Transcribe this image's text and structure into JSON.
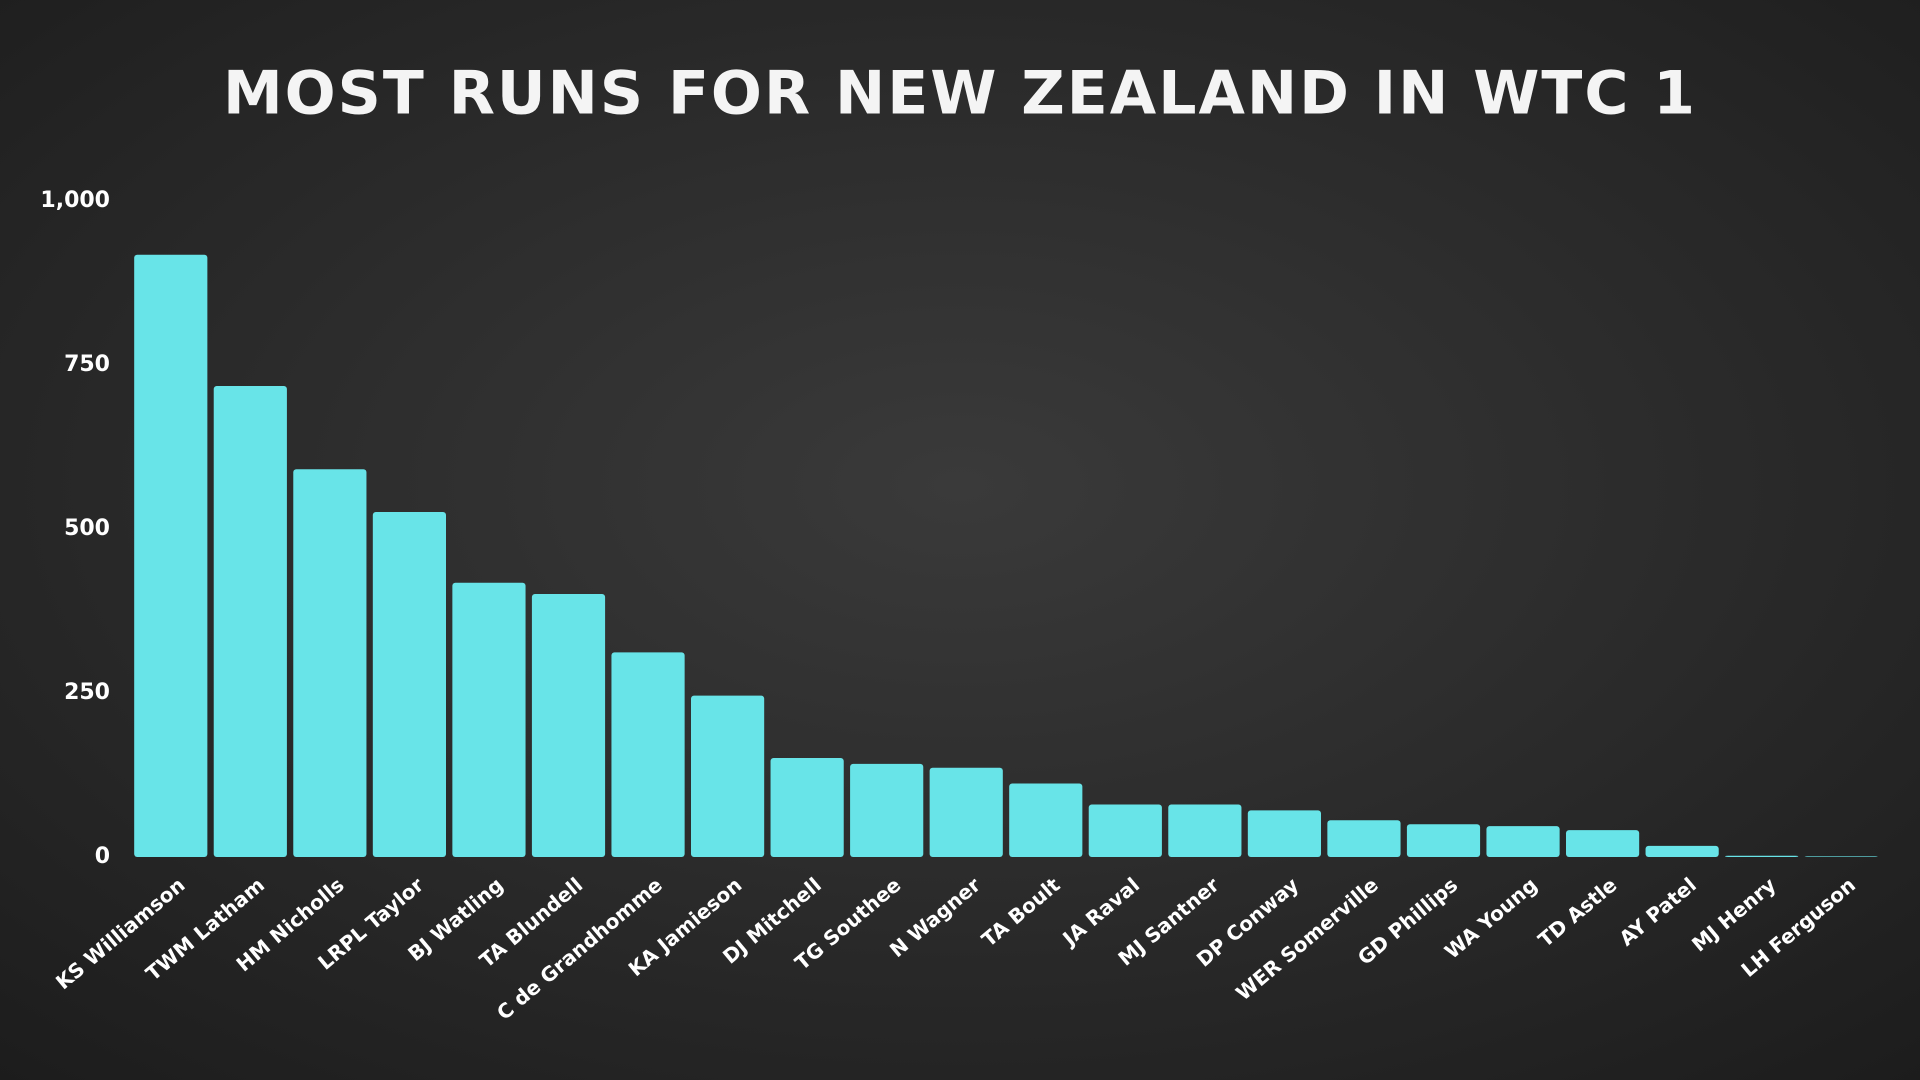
{
  "chart_data": {
    "type": "bar",
    "title": "Most runs for New Zealand in WTC 1",
    "categories": [
      "KS Williamson",
      "TWM Latham",
      "HM Nicholls",
      "LRPL Taylor",
      "BJ Watling",
      "TA Blundell",
      "C de Grandhomme",
      "KA Jamieson",
      "DJ Mitchell",
      "TG Southee",
      "N Wagner",
      "TA Boult",
      "JA Raval",
      "MJ Santner",
      "DP Conway",
      "WER Somerville",
      "GD Phillips",
      "WA Young",
      "TD Astle",
      "AY Patel",
      "MJ Henry",
      "LH Ferguson"
    ],
    "values": [
      918,
      718,
      591,
      526,
      418,
      401,
      312,
      246,
      151,
      142,
      136,
      112,
      80,
      80,
      71,
      56,
      50,
      47,
      41,
      17,
      2,
      1
    ],
    "color": "#68e4e8",
    "ylim": [
      0,
      1000
    ],
    "yticks": [
      0,
      250,
      500,
      750,
      {
        "value": 1000,
        "label": "1,000"
      }
    ],
    "grid": false
  }
}
